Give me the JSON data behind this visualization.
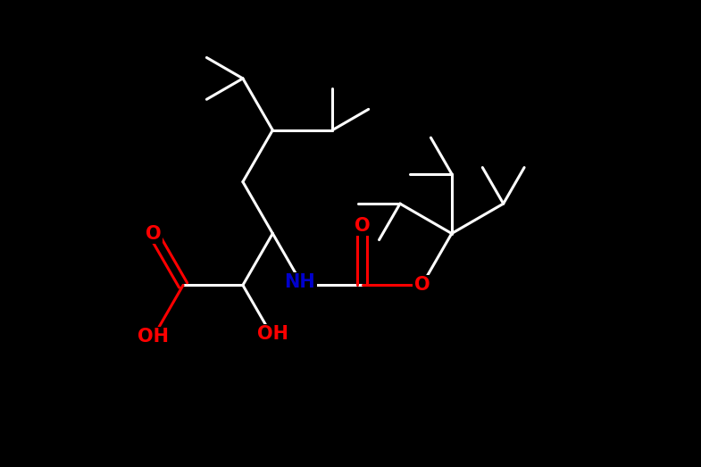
{
  "background_color": "#000000",
  "bond_color": "#ffffff",
  "bond_lw": 2.2,
  "label_fontsize": 15,
  "fig_width": 7.85,
  "fig_height": 5.23,
  "dpi": 100,
  "xlim": [
    -1,
    11
  ],
  "ylim": [
    -1,
    8
  ]
}
